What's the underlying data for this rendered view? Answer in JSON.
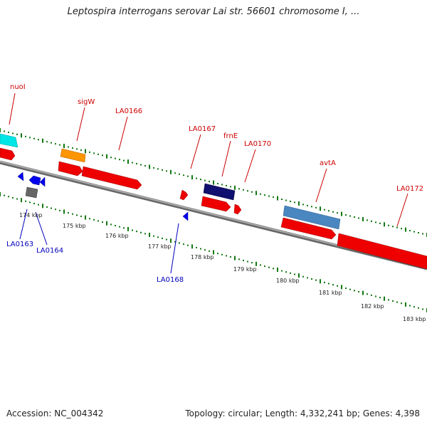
{
  "title": "Leptospira interrogans serovar Lai str. 56601 chromosome I, ...",
  "footer": {
    "accession": "Accession: NC_004342",
    "summary": "Topology: circular; Length: 4,332,241 bp; Genes: 4,398"
  },
  "colors": {
    "gene_forward": "#ee0000",
    "gene_reverse": "#0000ee",
    "backbone": "#888888",
    "tick": "#117711",
    "label_top": "#cc0000",
    "label_bottom": "#0000bb"
  },
  "scale_labels": [
    "174 kbp",
    "175 kbp",
    "176 kbp",
    "177 kbp",
    "178 kbp",
    "179 kbp",
    "180 kbp",
    "181 kbp",
    "182 kbp",
    "183 kbp"
  ],
  "top_labels": [
    "nuoI",
    "sigW",
    "LA0166",
    "LA0167",
    "frnE",
    "LA0170",
    "avtA",
    "LA0172"
  ],
  "bottom_labels": [
    "LA0163",
    "LA0164",
    "LA0168"
  ]
}
